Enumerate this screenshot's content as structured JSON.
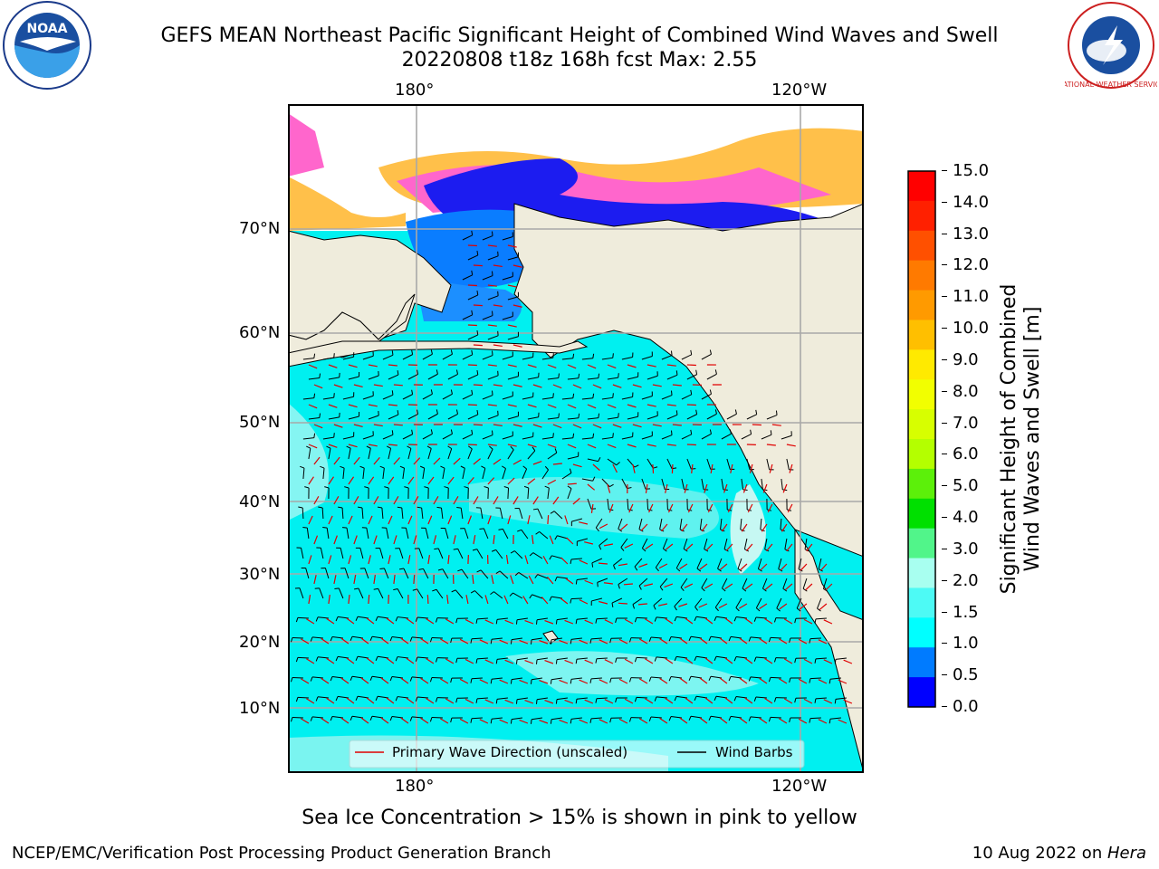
{
  "title": {
    "line1": "GEFS MEAN Northeast Pacific Significant Height of Combined Wind Waves and Swell",
    "line2": "20220808 t18z 168h fcst   Max: 2.55"
  },
  "logos": {
    "left": "NOAA",
    "right": "NATIONAL WEATHER SERVICE"
  },
  "map": {
    "lon_top": [
      "180°",
      "120°W"
    ],
    "lon_bottom": [
      "180°",
      "120°W"
    ],
    "lat": [
      "70°N",
      "60°N",
      "50°N",
      "40°N",
      "30°N",
      "20°N",
      "10°N"
    ],
    "legend": {
      "wave_label": "Primary Wave Direction (unscaled)",
      "barb_label": "Wind Barbs",
      "wave_color": "#e00000",
      "barb_color": "#000000"
    },
    "colors": {
      "land": "#efecdc",
      "ocean_main": "#00f0f0",
      "ocean_light": "#bff7f2"
    }
  },
  "colorbar": {
    "label_line1": "Significant Height of Combined",
    "label_line2": "Wind Waves and Swell [m]",
    "ticks": [
      "15.0",
      "14.0",
      "13.0",
      "12.0",
      "11.0",
      "10.0",
      "9.0",
      "8.0",
      "7.0",
      "6.0",
      "5.0",
      "4.0",
      "3.0",
      "2.0",
      "1.5",
      "1.0",
      "0.5",
      "0.0"
    ],
    "colors_top_to_bottom": [
      "#ff0000",
      "#ff2000",
      "#ff5000",
      "#ff7a00",
      "#ff9a00",
      "#ffbf00",
      "#ffea00",
      "#f2ff00",
      "#d7ff00",
      "#b4ff00",
      "#5cf00a",
      "#00e000",
      "#51f58a",
      "#a8fff0",
      "#4dfaf5",
      "#00ffff",
      "#007bff",
      "#0000ff"
    ]
  },
  "note": "Sea Ice Concentration > 15% is shown in pink to yellow",
  "footer": {
    "left": "NCEP/EMC/Verification Post Processing Product Generation Branch",
    "date": "10 Aug 2022 on ",
    "host": "Hera"
  }
}
